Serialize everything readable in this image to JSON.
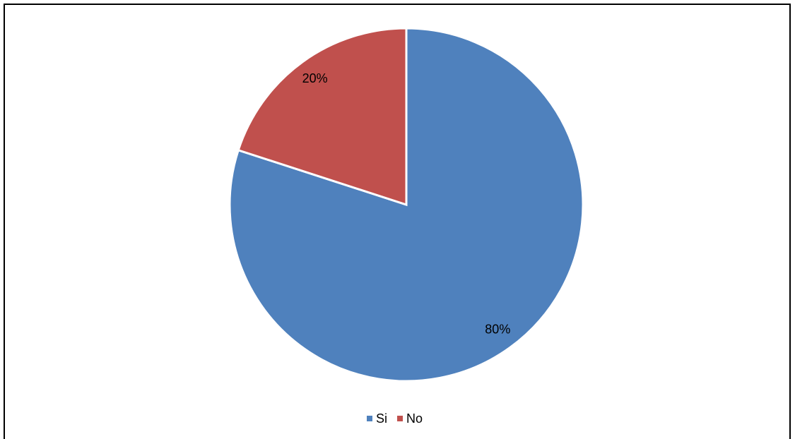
{
  "chart_data": {
    "type": "pie",
    "categories": [
      "Si",
      "No"
    ],
    "values": [
      80,
      20
    ],
    "value_labels": [
      "80%",
      "20%"
    ],
    "colors": [
      "#4f81bd",
      "#c0504d"
    ],
    "legend": "bottom"
  }
}
